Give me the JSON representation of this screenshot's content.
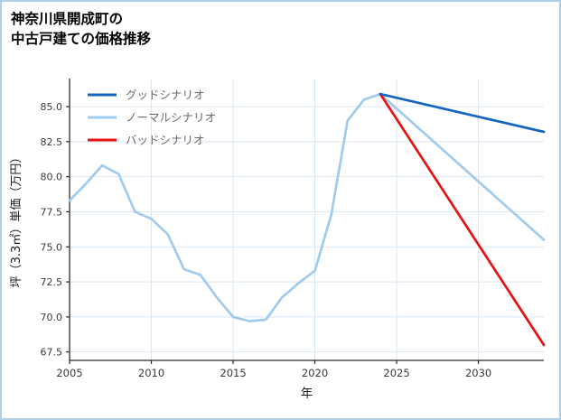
{
  "page": {
    "background": "#ffffff",
    "border_color": "#aecfe9"
  },
  "title": {
    "lines": [
      "神奈川県開成町の",
      "中古戸建ての価格推移"
    ]
  },
  "chart_data": {
    "type": "line",
    "title": "神奈川県開成町の中古戸建ての価格推移",
    "xlabel": "年",
    "ylabel": "坪（3.3㎡）単価（万円）",
    "xlim": [
      2005,
      2034
    ],
    "ylim": [
      66.9,
      87.0
    ],
    "xticks": [
      2005,
      2010,
      2015,
      2020,
      2025,
      2030
    ],
    "yticks": [
      67.5,
      70.0,
      72.5,
      75.0,
      77.5,
      80.0,
      82.5,
      85.0
    ],
    "grid": true,
    "legend_position": "upper-left",
    "style": {
      "grid_color": "#d9e8f6",
      "spine_color": "#2b2b2b",
      "tick_label_color": "#3a3a3a",
      "axis_label_color": "#1a1a1a",
      "legend_text_color": "#6b6b6b"
    },
    "series": [
      {
        "key": "good-scenario",
        "name": "グッドシナリオ",
        "color": "#1565c0",
        "x": [
          2024,
          2034
        ],
        "y": [
          85.9,
          83.2
        ]
      },
      {
        "key": "normal-scenario",
        "name": "ノーマルシナリオ",
        "color": "#a0cbee",
        "x": [
          2005,
          2006,
          2007,
          2008,
          2009,
          2010,
          2011,
          2012,
          2013,
          2014,
          2015,
          2016,
          2017,
          2018,
          2019,
          2020,
          2021,
          2022,
          2023,
          2024,
          2034
        ],
        "y": [
          78.3,
          79.5,
          80.8,
          80.2,
          77.5,
          77.0,
          75.9,
          73.4,
          73.0,
          71.4,
          70.0,
          69.7,
          69.8,
          71.4,
          72.4,
          73.3,
          77.3,
          84.0,
          85.5,
          85.9,
          75.5
        ]
      },
      {
        "key": "bad-scenario",
        "name": "バッドシナリオ",
        "color": "#e81010",
        "x": [
          2024,
          2034
        ],
        "y": [
          85.9,
          68.0
        ]
      }
    ]
  }
}
